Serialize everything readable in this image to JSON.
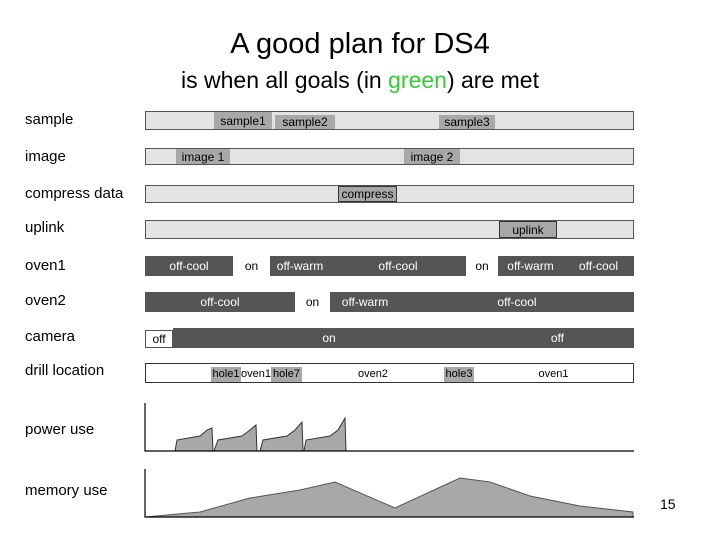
{
  "title": "A good plan for DS4",
  "subtitle": {
    "pre": "is when all goals (in ",
    "green": "green",
    "post": ") are met"
  },
  "colors": {
    "light": "#e3e3e3",
    "mid": "#a8a8a8",
    "dark": "#555555",
    "white": "#ffffff",
    "goal_green": "#33cc33"
  },
  "rows": [
    {
      "label": "sample",
      "labels": [
        "sample1",
        "sample2",
        "sample3"
      ]
    },
    {
      "label": "image",
      "labels": [
        "image 1",
        "image 2"
      ]
    },
    {
      "label": "compress data",
      "labels": [
        "compress"
      ]
    },
    {
      "label": "uplink",
      "labels": [
        "uplink"
      ]
    },
    {
      "label": "oven1",
      "labels": [
        "off-cool",
        "on",
        "off-warm",
        "off-cool",
        "on",
        "off-warm",
        "off-cool"
      ]
    },
    {
      "label": "oven2",
      "labels": [
        "off-cool",
        "on",
        "off-warm",
        "off-cool"
      ]
    },
    {
      "label": "camera",
      "labels": [
        "off",
        "on",
        "off"
      ]
    },
    {
      "label": "drill location",
      "labels": [
        "hole1",
        "oven1",
        "hole7",
        "oven2",
        "hole3",
        "oven1"
      ]
    }
  ],
  "power_label": "power use",
  "memory_label": "memory use",
  "page_number": "15"
}
